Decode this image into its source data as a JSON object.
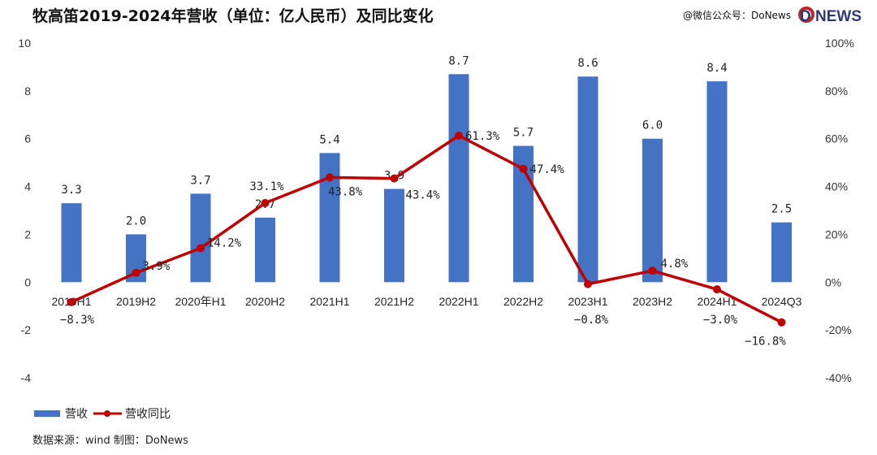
{
  "chart_data": {
    "type": "bar+line",
    "title": "牧高笛2019-2024年营收（单位：亿人民币）及同比变化",
    "watermark": "@微信公众号：DoNews",
    "logo": "DONEWS",
    "categories": [
      "2019H1",
      "2019H2",
      "2020年H1",
      "2020H2",
      "2021H1",
      "2021H2",
      "2022H1",
      "2022H2",
      "2023H1",
      "2023H2",
      "2024H1",
      "2024Q3"
    ],
    "series": [
      {
        "name": "营收",
        "type": "bar",
        "axis": "left",
        "color": "#4472C4",
        "values": [
          3.3,
          2.0,
          3.7,
          2.7,
          5.4,
          3.9,
          8.7,
          5.7,
          8.6,
          6.0,
          8.4,
          2.5
        ],
        "labels": [
          "3.3",
          "2.0",
          "3.7",
          "2.7",
          "5.4",
          "3.9",
          "8.7",
          "5.7",
          "8.6",
          "6.0",
          "8.4",
          "2.5"
        ]
      },
      {
        "name": "营收同比",
        "type": "line",
        "axis": "right",
        "color": "#C00000",
        "values": [
          -8.3,
          3.9,
          14.2,
          33.1,
          43.8,
          43.4,
          61.3,
          47.4,
          -0.8,
          4.8,
          -3.0,
          -16.8
        ],
        "labels": [
          "-8.3%",
          "3.9%",
          "14.2%",
          "33.1%",
          "43.8%",
          "43.4%",
          "61.3%",
          "47.4%",
          "-0.8%",
          "4.8%",
          "-3.0%",
          "-16.8%"
        ]
      }
    ],
    "ylim_left": [
      -4,
      10
    ],
    "yticks_left": [
      "10",
      "8",
      "6",
      "4",
      "2",
      "0",
      "-2",
      "-4"
    ],
    "ylim_right": [
      -40,
      100
    ],
    "yticks_right": [
      "100%",
      "80%",
      "60%",
      "40%",
      "20%",
      "0%",
      "-20%",
      "-40%"
    ],
    "grid": false,
    "legend_position": "bottom-left",
    "source": "数据来源：wind   制图：DoNews"
  }
}
